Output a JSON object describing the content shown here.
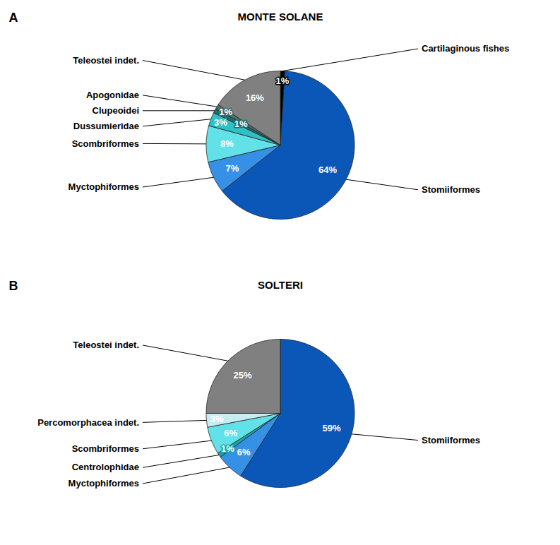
{
  "chart_data": [
    {
      "type": "pie",
      "title": "MONTE SOLANE",
      "panel_label": "A",
      "categories": [
        "Cartilaginous fishes",
        "Stomiiformes",
        "Myctophiformes",
        "Scombriformes",
        "Dussumieridae",
        "Clupeoidei",
        "Apogonidae",
        "Teleostei indet."
      ],
      "values": [
        1,
        64,
        7,
        8,
        3,
        1,
        1,
        16
      ],
      "value_labels": [
        "1%",
        "64%",
        "7%",
        "8%",
        "3%",
        "1%",
        "1%",
        "16%"
      ],
      "colors": [
        "#000000",
        "#0b57b8",
        "#3590e6",
        "#62e2e8",
        "#2fc0c4",
        "#1f6e6e",
        "#4b6d6e",
        "#808080"
      ],
      "data_labels": true
    },
    {
      "type": "pie",
      "title": "SOLTERI",
      "panel_label": "B",
      "categories": [
        "Stomiiformes",
        "Myctophiformes",
        "Centrolophidae",
        "Scombriformes",
        "Percomorphacea indet.",
        "Teleostei indet."
      ],
      "values": [
        59,
        6,
        1,
        6,
        3,
        25
      ],
      "value_labels": [
        "59%",
        "6%",
        "1%",
        "6%",
        "3%",
        "25%"
      ],
      "colors": [
        "#0b57b8",
        "#3590e6",
        "#1aa3a6",
        "#62e2e8",
        "#c6eef2",
        "#808080"
      ],
      "data_labels": true
    }
  ]
}
